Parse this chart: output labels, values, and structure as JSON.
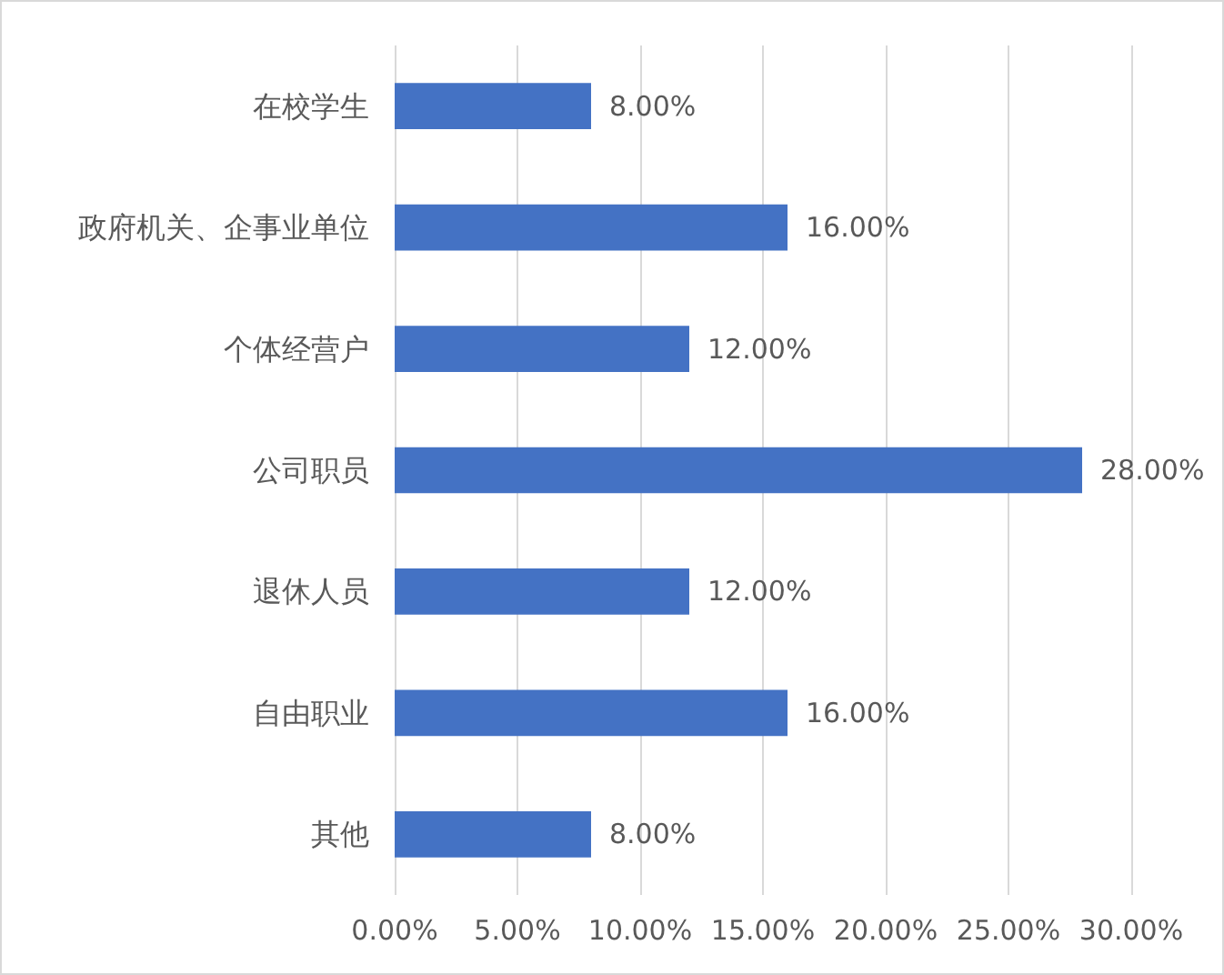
{
  "chart_data": {
    "type": "bar",
    "orientation": "horizontal",
    "categories": [
      "在校学生",
      "政府机关、企事业单位",
      "个体经营户",
      "公司职员",
      "退休人员",
      "自由职业",
      "其他"
    ],
    "values": [
      8,
      16,
      12,
      28,
      12,
      16,
      8
    ],
    "value_labels": [
      "8.00%",
      "16.00%",
      "12.00%",
      "28.00%",
      "12.00%",
      "16.00%",
      "8.00%"
    ],
    "color": "#4472c4",
    "xlim": [
      0,
      30
    ],
    "xticks": [
      {
        "value": 0,
        "label": "0.00%"
      },
      {
        "value": 5,
        "label": "5.00%"
      },
      {
        "value": 10,
        "label": "10.00%"
      },
      {
        "value": 15,
        "label": "15.00%"
      },
      {
        "value": 20,
        "label": "20.00%"
      },
      {
        "value": 25,
        "label": "25.00%"
      },
      {
        "value": 30,
        "label": "30.00%"
      }
    ],
    "grid": "x"
  }
}
